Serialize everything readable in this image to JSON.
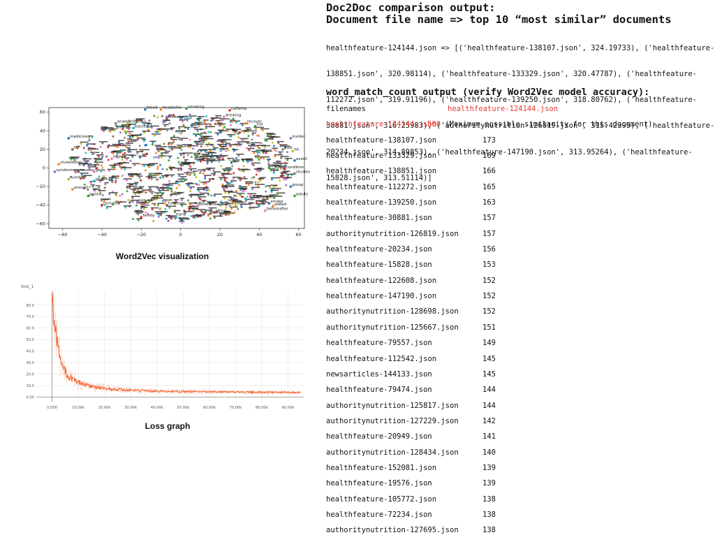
{
  "doc2doc": {
    "title": "Doc2Doc comparison output:",
    "subtitle": "Document file name => top 10 “most similar” documents",
    "lines": [
      "healthfeature-124144.json => [('healthfeature-138107.json', 324.19733), ('healthfeature-",
      "138851.json', 320.98114), ('healthfeature-133329.json', 320.47787), ('healthfeature-",
      "112272.json', 319.91196), ('healthfeature-139250.json', 318.80762), ('healthfeature-",
      "30881.json', 316.25983), ('authoritynutrition-126819.json', 315.42395), ('healthfeature-",
      "20234.json', 314.89853), ('healthfeature-147190.json', 313.95264), ('healthfeature-",
      "15828.json', 313.51114)]"
    ]
  },
  "word_match": {
    "title": "word_match_count output (verify Word2Vec model accuracy):",
    "header": {
      "name": "filenames",
      "value": "healthfeature-124144.json"
    },
    "self_row": {
      "name": "healthfeature-124144.json",
      "value": "500",
      "note": "(Maximum possible similarity for this document)"
    },
    "rows": [
      {
        "name": "healthfeature-138107.json",
        "value": "173"
      },
      {
        "name": "healthfeature-133329.json",
        "value": "169"
      },
      {
        "name": "healthfeature-138851.json",
        "value": "166"
      },
      {
        "name": "healthfeature-112272.json",
        "value": "165"
      },
      {
        "name": "healthfeature-139250.json",
        "value": "163"
      },
      {
        "name": "healthfeature-30881.json",
        "value": "157"
      },
      {
        "name": "authoritynutrition-126819.json",
        "value": "157"
      },
      {
        "name": "healthfeature-20234.json",
        "value": "156"
      },
      {
        "name": "healthfeature-15828.json",
        "value": "153"
      },
      {
        "name": "healthfeature-122608.json",
        "value": "152"
      },
      {
        "name": "healthfeature-147190.json",
        "value": "152"
      },
      {
        "name": "authoritynutrition-128698.json",
        "value": "152"
      },
      {
        "name": "authoritynutrition-125667.json",
        "value": "151"
      },
      {
        "name": "healthfeature-79557.json",
        "value": "149"
      },
      {
        "name": "healthfeature-112542.json",
        "value": "145"
      },
      {
        "name": "newsarticles-144133.json",
        "value": "145"
      },
      {
        "name": "healthfeature-79474.json",
        "value": "144"
      },
      {
        "name": "authoritynutrition-125817.json",
        "value": "144"
      },
      {
        "name": "authoritynutrition-127229.json",
        "value": "142"
      },
      {
        "name": "healthfeature-20949.json",
        "value": "141"
      },
      {
        "name": "authoritynutrition-128434.json",
        "value": "140"
      },
      {
        "name": "healthfeature-152081.json",
        "value": "139"
      },
      {
        "name": "healthfeature-19576.json",
        "value": "139"
      },
      {
        "name": "healthfeature-105772.json",
        "value": "138"
      },
      {
        "name": "healthfeature-72234.json",
        "value": "138"
      },
      {
        "name": "authoritynutrition-127695.json",
        "value": "138"
      }
    ]
  },
  "chart_data": [
    {
      "type": "scatter",
      "caption": "Word2Vec visualization",
      "xlim": [
        -67,
        63
      ],
      "ylim": [
        -65,
        65
      ],
      "xticks": [
        -60,
        -40,
        -20,
        0,
        20,
        40,
        60
      ],
      "yticks": [
        -60,
        -40,
        -20,
        0,
        20,
        40,
        60
      ],
      "grid": false,
      "point_colors": [
        "#1f77b4",
        "#ff7f0e",
        "#2ca02c",
        "#d62728",
        "#9467bd",
        "#8c564b",
        "#e377c2",
        "#7f7f7f",
        "#bcbd22",
        "#17becf"
      ],
      "labeled_points": [
        {
          "x": -18,
          "y": 63,
          "label": "blood"
        },
        {
          "x": -10,
          "y": 63,
          "label": "headache"
        },
        {
          "x": 3,
          "y": 64,
          "label": "smoking"
        },
        {
          "x": 25,
          "y": 62,
          "label": "caffeine"
        },
        {
          "x": -7,
          "y": 55,
          "label": "eat"
        },
        {
          "x": -7,
          "y": 53,
          "label": "threat"
        },
        {
          "x": 22,
          "y": 55,
          "label": "drinking"
        },
        {
          "x": -33,
          "y": 48,
          "label": "anaedi"
        },
        {
          "x": -27,
          "y": 48,
          "label": "infection"
        },
        {
          "x": -24,
          "y": 43,
          "label": "bacterial"
        },
        {
          "x": -57,
          "y": 32,
          "label": "medicine"
        },
        {
          "x": 33,
          "y": 48,
          "label": "recover"
        },
        {
          "x": 38,
          "y": 45,
          "label": "full"
        },
        {
          "x": 30,
          "y": 38,
          "label": "problem"
        },
        {
          "x": 56,
          "y": 32,
          "label": "insider"
        },
        {
          "x": -55,
          "y": 20,
          "label": "fry"
        },
        {
          "x": -35,
          "y": 10,
          "label": "higher"
        },
        {
          "x": 52,
          "y": 20,
          "label": "bulk"
        },
        {
          "x": 57,
          "y": 18,
          "label": "lot"
        },
        {
          "x": 40,
          "y": 17,
          "label": "affect"
        },
        {
          "x": 58,
          "y": 8,
          "label": "avoid"
        },
        {
          "x": -62,
          "y": 4,
          "label": "cholesterol"
        },
        {
          "x": 45,
          "y": 0,
          "label": "disease"
        },
        {
          "x": 53,
          "y": -1,
          "label": "condition"
        },
        {
          "x": -64,
          "y": -4,
          "label": "syndrome"
        },
        {
          "x": -52,
          "y": -4,
          "label": "nausea"
        },
        {
          "x": -44,
          "y": -4,
          "label": "gene"
        },
        {
          "x": 58,
          "y": -6,
          "label": "studies"
        },
        {
          "x": -57,
          "y": -12,
          "label": "number"
        },
        {
          "x": -44,
          "y": -14,
          "label": "physical"
        },
        {
          "x": 56,
          "y": -20,
          "label": "group"
        },
        {
          "x": -55,
          "y": -23,
          "label": "enough"
        },
        {
          "x": -47,
          "y": -30,
          "label": "lasted"
        },
        {
          "x": -40,
          "y": -40,
          "label": "includes"
        },
        {
          "x": -22,
          "y": -37,
          "label": "natural"
        },
        {
          "x": -7,
          "y": -40,
          "label": "however"
        },
        {
          "x": 8,
          "y": -41,
          "label": "sometimes"
        },
        {
          "x": 23,
          "y": -37,
          "label": "never"
        },
        {
          "x": 28,
          "y": -40,
          "label": "both"
        },
        {
          "x": 33,
          "y": -33,
          "label": "contaminated"
        },
        {
          "x": 45,
          "y": -38,
          "label": "smoke"
        },
        {
          "x": 47,
          "y": -41,
          "label": "added"
        },
        {
          "x": 58,
          "y": -30,
          "label": "adults"
        },
        {
          "x": -20,
          "y": -53,
          "label": "family"
        },
        {
          "x": -3,
          "y": -52,
          "label": "early"
        },
        {
          "x": 17,
          "y": -48,
          "label": "effect"
        },
        {
          "x": 43,
          "y": -46,
          "label": "beforeafter"
        }
      ]
    },
    {
      "type": "line",
      "caption": "Loss graph",
      "title": "loss_1",
      "xlim": [
        -6000,
        96000
      ],
      "ylim": [
        -4,
        92
      ],
      "yticks": [
        0,
        10,
        20,
        30,
        40,
        50,
        60,
        70,
        80
      ],
      "ytick_labels": [
        "0.00",
        "10.0",
        "20.0",
        "30.0",
        "40.0",
        "50.0",
        "60.0",
        "70.0",
        "80.0"
      ],
      "xticks": [
        0,
        10000,
        20000,
        30000,
        40000,
        50000,
        60000,
        70000,
        80000,
        90000
      ],
      "xtick_labels": [
        "0.000",
        "10.00k",
        "20.00k",
        "30.00k",
        "40.00k",
        "50.00k",
        "60.00k",
        "70.00k",
        "80.00k",
        "90.00k"
      ],
      "grid": true,
      "line_color": "#f26b3a",
      "series": [
        {
          "x": [
            0,
            1000,
            2000,
            3000,
            4000,
            5000,
            6000,
            8000,
            10000,
            12000,
            15000,
            18000,
            20000,
            25000,
            30000,
            35000,
            40000,
            50000,
            60000,
            70000,
            80000,
            90000,
            95000
          ],
          "values": [
            90,
            60,
            45,
            35,
            28,
            22,
            19,
            15,
            13,
            11,
            9,
            8,
            7.5,
            6.5,
            6,
            5.5,
            5,
            4.8,
            4.5,
            4.3,
            4.2,
            4.1,
            4
          ]
        }
      ]
    }
  ],
  "captions": {
    "word2vec": "Word2Vec visualization",
    "loss": "Loss graph"
  }
}
